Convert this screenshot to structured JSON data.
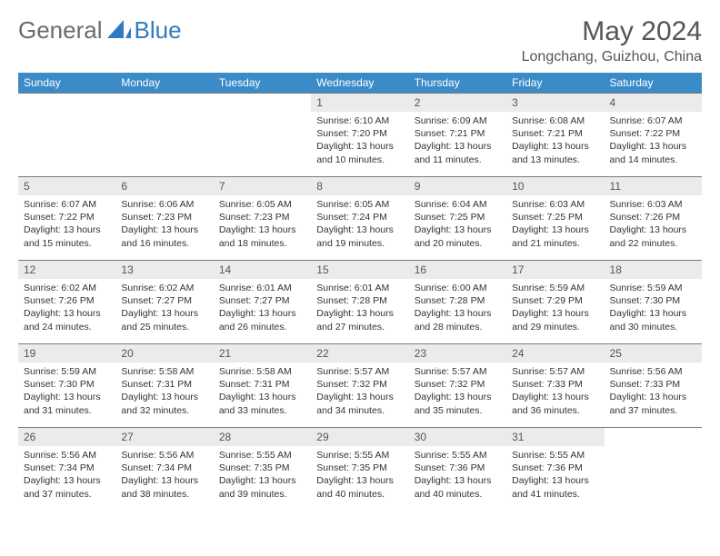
{
  "brand": {
    "part1": "General",
    "part2": "Blue"
  },
  "title": "May 2024",
  "location": "Longchang, Guizhou, China",
  "colors": {
    "header_bg": "#3b8bc9",
    "header_text": "#ffffff",
    "daynum_bg": "#ebebeb",
    "border": "#7a7a7a",
    "brand_gray": "#6b6b6b",
    "brand_blue": "#2f7bbf"
  },
  "day_headers": [
    "Sunday",
    "Monday",
    "Tuesday",
    "Wednesday",
    "Thursday",
    "Friday",
    "Saturday"
  ],
  "weeks": [
    [
      {
        "n": "",
        "sr": "",
        "ss": "",
        "dl": ""
      },
      {
        "n": "",
        "sr": "",
        "ss": "",
        "dl": ""
      },
      {
        "n": "",
        "sr": "",
        "ss": "",
        "dl": ""
      },
      {
        "n": "1",
        "sr": "Sunrise: 6:10 AM",
        "ss": "Sunset: 7:20 PM",
        "dl": "Daylight: 13 hours and 10 minutes."
      },
      {
        "n": "2",
        "sr": "Sunrise: 6:09 AM",
        "ss": "Sunset: 7:21 PM",
        "dl": "Daylight: 13 hours and 11 minutes."
      },
      {
        "n": "3",
        "sr": "Sunrise: 6:08 AM",
        "ss": "Sunset: 7:21 PM",
        "dl": "Daylight: 13 hours and 13 minutes."
      },
      {
        "n": "4",
        "sr": "Sunrise: 6:07 AM",
        "ss": "Sunset: 7:22 PM",
        "dl": "Daylight: 13 hours and 14 minutes."
      }
    ],
    [
      {
        "n": "5",
        "sr": "Sunrise: 6:07 AM",
        "ss": "Sunset: 7:22 PM",
        "dl": "Daylight: 13 hours and 15 minutes."
      },
      {
        "n": "6",
        "sr": "Sunrise: 6:06 AM",
        "ss": "Sunset: 7:23 PM",
        "dl": "Daylight: 13 hours and 16 minutes."
      },
      {
        "n": "7",
        "sr": "Sunrise: 6:05 AM",
        "ss": "Sunset: 7:23 PM",
        "dl": "Daylight: 13 hours and 18 minutes."
      },
      {
        "n": "8",
        "sr": "Sunrise: 6:05 AM",
        "ss": "Sunset: 7:24 PM",
        "dl": "Daylight: 13 hours and 19 minutes."
      },
      {
        "n": "9",
        "sr": "Sunrise: 6:04 AM",
        "ss": "Sunset: 7:25 PM",
        "dl": "Daylight: 13 hours and 20 minutes."
      },
      {
        "n": "10",
        "sr": "Sunrise: 6:03 AM",
        "ss": "Sunset: 7:25 PM",
        "dl": "Daylight: 13 hours and 21 minutes."
      },
      {
        "n": "11",
        "sr": "Sunrise: 6:03 AM",
        "ss": "Sunset: 7:26 PM",
        "dl": "Daylight: 13 hours and 22 minutes."
      }
    ],
    [
      {
        "n": "12",
        "sr": "Sunrise: 6:02 AM",
        "ss": "Sunset: 7:26 PM",
        "dl": "Daylight: 13 hours and 24 minutes."
      },
      {
        "n": "13",
        "sr": "Sunrise: 6:02 AM",
        "ss": "Sunset: 7:27 PM",
        "dl": "Daylight: 13 hours and 25 minutes."
      },
      {
        "n": "14",
        "sr": "Sunrise: 6:01 AM",
        "ss": "Sunset: 7:27 PM",
        "dl": "Daylight: 13 hours and 26 minutes."
      },
      {
        "n": "15",
        "sr": "Sunrise: 6:01 AM",
        "ss": "Sunset: 7:28 PM",
        "dl": "Daylight: 13 hours and 27 minutes."
      },
      {
        "n": "16",
        "sr": "Sunrise: 6:00 AM",
        "ss": "Sunset: 7:28 PM",
        "dl": "Daylight: 13 hours and 28 minutes."
      },
      {
        "n": "17",
        "sr": "Sunrise: 5:59 AM",
        "ss": "Sunset: 7:29 PM",
        "dl": "Daylight: 13 hours and 29 minutes."
      },
      {
        "n": "18",
        "sr": "Sunrise: 5:59 AM",
        "ss": "Sunset: 7:30 PM",
        "dl": "Daylight: 13 hours and 30 minutes."
      }
    ],
    [
      {
        "n": "19",
        "sr": "Sunrise: 5:59 AM",
        "ss": "Sunset: 7:30 PM",
        "dl": "Daylight: 13 hours and 31 minutes."
      },
      {
        "n": "20",
        "sr": "Sunrise: 5:58 AM",
        "ss": "Sunset: 7:31 PM",
        "dl": "Daylight: 13 hours and 32 minutes."
      },
      {
        "n": "21",
        "sr": "Sunrise: 5:58 AM",
        "ss": "Sunset: 7:31 PM",
        "dl": "Daylight: 13 hours and 33 minutes."
      },
      {
        "n": "22",
        "sr": "Sunrise: 5:57 AM",
        "ss": "Sunset: 7:32 PM",
        "dl": "Daylight: 13 hours and 34 minutes."
      },
      {
        "n": "23",
        "sr": "Sunrise: 5:57 AM",
        "ss": "Sunset: 7:32 PM",
        "dl": "Daylight: 13 hours and 35 minutes."
      },
      {
        "n": "24",
        "sr": "Sunrise: 5:57 AM",
        "ss": "Sunset: 7:33 PM",
        "dl": "Daylight: 13 hours and 36 minutes."
      },
      {
        "n": "25",
        "sr": "Sunrise: 5:56 AM",
        "ss": "Sunset: 7:33 PM",
        "dl": "Daylight: 13 hours and 37 minutes."
      }
    ],
    [
      {
        "n": "26",
        "sr": "Sunrise: 5:56 AM",
        "ss": "Sunset: 7:34 PM",
        "dl": "Daylight: 13 hours and 37 minutes."
      },
      {
        "n": "27",
        "sr": "Sunrise: 5:56 AM",
        "ss": "Sunset: 7:34 PM",
        "dl": "Daylight: 13 hours and 38 minutes."
      },
      {
        "n": "28",
        "sr": "Sunrise: 5:55 AM",
        "ss": "Sunset: 7:35 PM",
        "dl": "Daylight: 13 hours and 39 minutes."
      },
      {
        "n": "29",
        "sr": "Sunrise: 5:55 AM",
        "ss": "Sunset: 7:35 PM",
        "dl": "Daylight: 13 hours and 40 minutes."
      },
      {
        "n": "30",
        "sr": "Sunrise: 5:55 AM",
        "ss": "Sunset: 7:36 PM",
        "dl": "Daylight: 13 hours and 40 minutes."
      },
      {
        "n": "31",
        "sr": "Sunrise: 5:55 AM",
        "ss": "Sunset: 7:36 PM",
        "dl": "Daylight: 13 hours and 41 minutes."
      },
      {
        "n": "",
        "sr": "",
        "ss": "",
        "dl": ""
      }
    ]
  ]
}
